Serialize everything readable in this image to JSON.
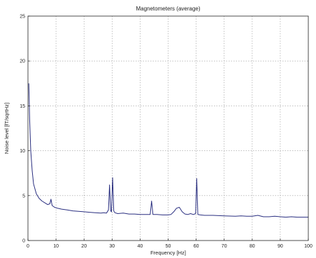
{
  "chart_data": {
    "type": "line",
    "title": "Magnetometers (average)",
    "xlabel": "Frequency [Hz]",
    "ylabel": "Noise level [fT/sqrtHz]",
    "xlim": [
      0,
      100
    ],
    "ylim": [
      0,
      25
    ],
    "x_ticks": [
      0,
      10,
      20,
      30,
      40,
      50,
      60,
      70,
      80,
      90,
      100
    ],
    "y_ticks": [
      0,
      5,
      10,
      15,
      20,
      25
    ],
    "grid": true,
    "line_color": "#2a2f80",
    "series": [
      {
        "x": [
          0.3,
          0.6,
          1,
          1.5,
          2,
          3,
          4,
          5,
          6,
          7,
          7.8,
          8.2,
          8.6,
          9.5,
          10.5,
          12,
          14,
          16,
          18,
          20,
          22,
          24,
          26,
          27,
          28,
          28.7,
          29.1,
          29.5,
          29.8,
          30.2,
          30.6,
          31,
          32,
          34,
          36,
          38,
          40,
          42,
          43.6,
          44.1,
          44.6,
          46,
          48,
          50,
          51,
          52,
          53,
          54,
          55,
          56,
          57,
          58,
          59,
          59.8,
          60.2,
          60.6,
          61.5,
          63,
          66,
          70,
          74,
          76,
          78,
          80,
          82,
          84,
          86,
          88,
          90,
          92,
          94,
          96,
          98,
          100
        ],
        "y": [
          17.5,
          13.5,
          10.0,
          7.8,
          6.3,
          5.2,
          4.7,
          4.4,
          4.2,
          4.0,
          4.1,
          4.6,
          3.9,
          3.7,
          3.6,
          3.5,
          3.4,
          3.3,
          3.25,
          3.2,
          3.15,
          3.1,
          3.05,
          3.1,
          3.05,
          3.4,
          6.2,
          3.3,
          3.2,
          7.0,
          3.3,
          3.1,
          3.0,
          3.05,
          2.95,
          2.95,
          2.9,
          2.9,
          2.9,
          4.4,
          2.9,
          2.9,
          2.85,
          2.85,
          2.9,
          3.2,
          3.6,
          3.7,
          3.2,
          2.95,
          2.9,
          3.0,
          2.9,
          3.0,
          6.9,
          2.9,
          2.85,
          2.8,
          2.8,
          2.75,
          2.7,
          2.75,
          2.7,
          2.7,
          2.8,
          2.65,
          2.65,
          2.7,
          2.65,
          2.6,
          2.65,
          2.6,
          2.6,
          2.6
        ]
      }
    ]
  }
}
